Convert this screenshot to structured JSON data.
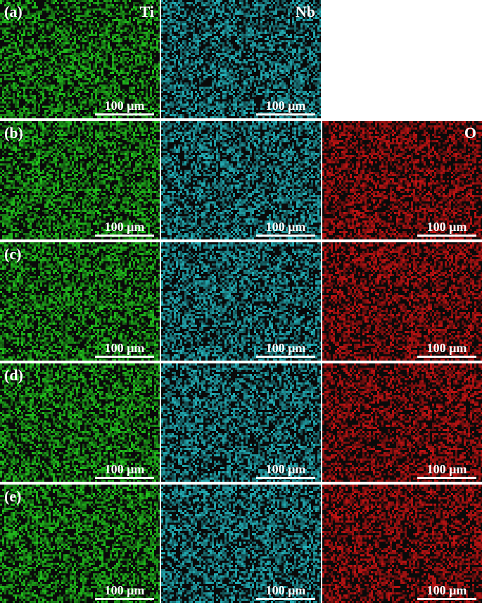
{
  "figure": {
    "columns": [
      {
        "element": "Ti",
        "color": "#22c81e"
      },
      {
        "element": "Nb",
        "color": "#24b4bc"
      },
      {
        "element": "O",
        "color": "#c81414"
      }
    ],
    "rows": [
      {
        "label": "(a)",
        "panels": [
          {
            "element_label": "Ti",
            "scale": "100 µm"
          },
          {
            "element_label": "Nb",
            "scale": "100 µm"
          }
        ]
      },
      {
        "label": "(b)",
        "panels": [
          {
            "element_label": "",
            "scale": "100 µm"
          },
          {
            "element_label": "",
            "scale": "100 µm"
          },
          {
            "element_label": "O",
            "scale": "100 µm"
          }
        ]
      },
      {
        "label": "(c)",
        "panels": [
          {
            "element_label": "",
            "scale": "100 µm"
          },
          {
            "element_label": "",
            "scale": "100 µm"
          },
          {
            "element_label": "",
            "scale": "100 µm"
          }
        ]
      },
      {
        "label": "(d)",
        "panels": [
          {
            "element_label": "",
            "scale": "100 µm"
          },
          {
            "element_label": "",
            "scale": "100 µm"
          },
          {
            "element_label": "",
            "scale": "100 µm"
          }
        ]
      },
      {
        "label": "(e)",
        "panels": [
          {
            "element_label": "",
            "scale": "100 µm"
          },
          {
            "element_label": "",
            "scale": "100 µm"
          },
          {
            "element_label": "",
            "scale": "100 µm"
          }
        ]
      }
    ]
  }
}
